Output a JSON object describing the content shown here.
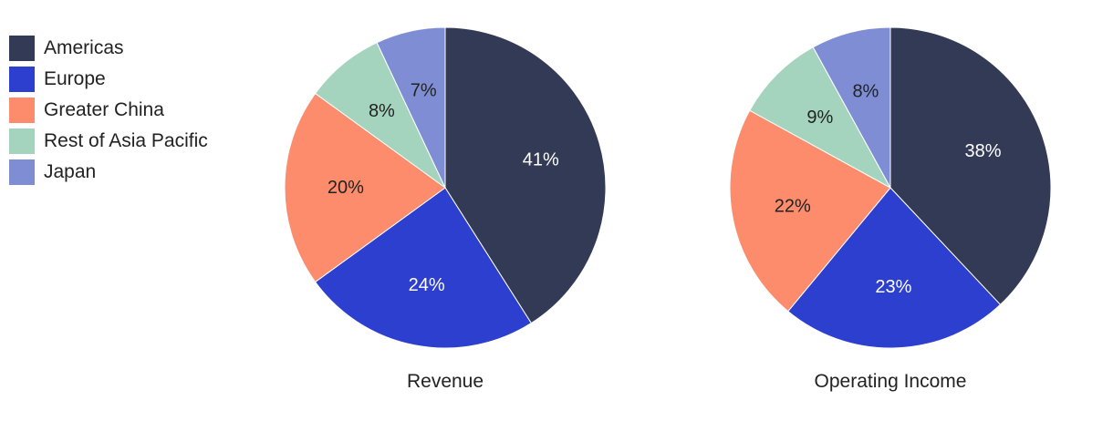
{
  "colors": {
    "Americas": "#333a56",
    "Europe": "#2c3fce",
    "Greater China": "#fd8c6c",
    "Rest of Asia Pacific": "#a5d4be",
    "Japan": "#7f8ed4"
  },
  "legend": [
    {
      "label": "Americas",
      "color": "#333a56"
    },
    {
      "label": "Europe",
      "color": "#2c3fce"
    },
    {
      "label": "Greater China",
      "color": "#fd8c6c"
    },
    {
      "label": "Rest of Asia Pacific",
      "color": "#a5d4be"
    },
    {
      "label": "Japan",
      "color": "#7f8ed4"
    }
  ],
  "chart_data": [
    {
      "type": "pie",
      "title": "Revenue",
      "categories": [
        "Americas",
        "Europe",
        "Greater China",
        "Rest of Asia Pacific",
        "Japan"
      ],
      "values": [
        41,
        24,
        20,
        8,
        7
      ],
      "labels": [
        "41%",
        "24%",
        "20%",
        "8%",
        "7%"
      ],
      "start": "top",
      "direction": "clockwise"
    },
    {
      "type": "pie",
      "title": "Operating Income",
      "categories": [
        "Americas",
        "Europe",
        "Greater China",
        "Rest of Asia Pacific",
        "Japan"
      ],
      "values": [
        38,
        23,
        22,
        9,
        8
      ],
      "labels": [
        "38%",
        "23%",
        "22%",
        "9%",
        "8%"
      ],
      "start": "top",
      "direction": "clockwise"
    }
  ]
}
